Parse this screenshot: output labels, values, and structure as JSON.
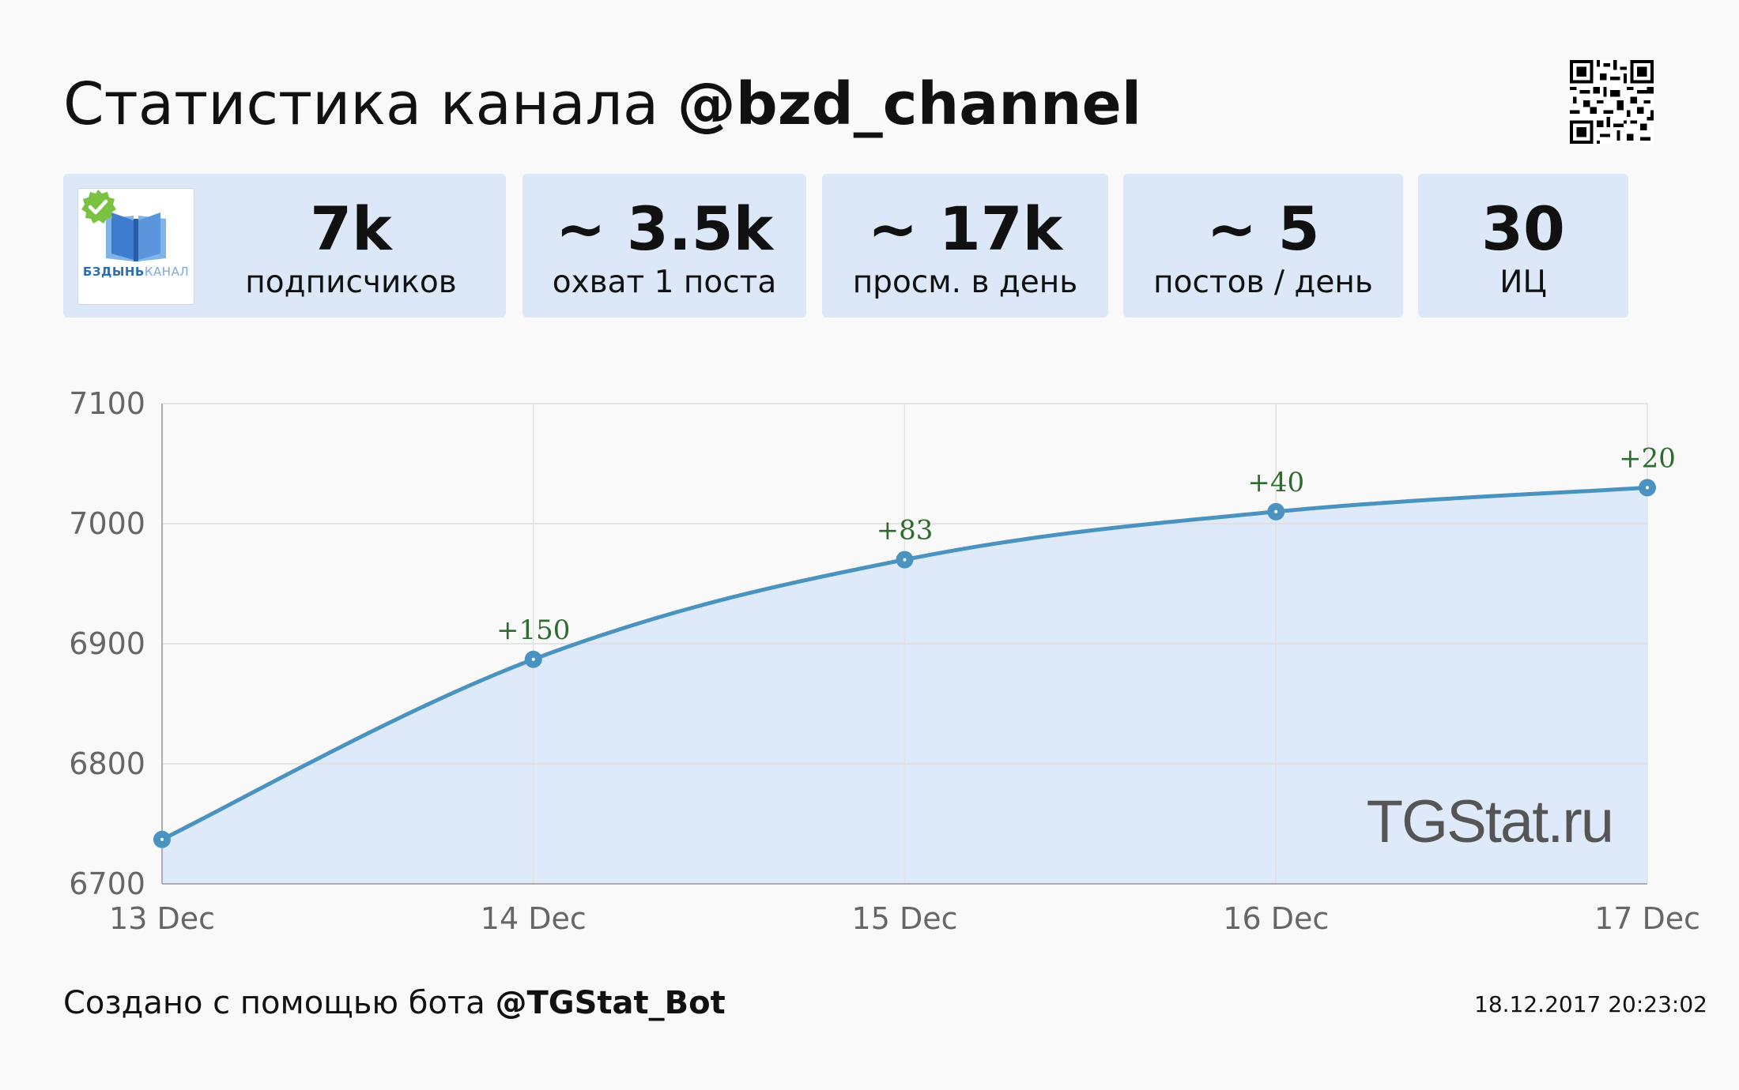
{
  "header": {
    "title_prefix": "Статистика канала ",
    "title_channel": "@bzd_channel"
  },
  "avatar": {
    "name_part1": "БЗДЫНЬ",
    "name_part2": "КАНАЛ",
    "verified_color": "#7cc242"
  },
  "stats": [
    {
      "value": "7k",
      "label": "подписчиков"
    },
    {
      "value": "~ 3.5k",
      "label": "охват 1 поста"
    },
    {
      "value": "~ 17k",
      "label": "просм. в день"
    },
    {
      "value": "~ 5",
      "label": "постов / день"
    },
    {
      "value": "30",
      "label": "ИЦ"
    }
  ],
  "chart_data": {
    "type": "line",
    "categories": [
      "13 Dec",
      "14 Dec",
      "15 Dec",
      "16 Dec",
      "17 Dec"
    ],
    "series": [
      {
        "values": [
          6737,
          6887,
          6970,
          7010,
          7030
        ]
      }
    ],
    "annotations": [
      "",
      "+150",
      "+83",
      "+40",
      "+20"
    ],
    "y_ticks": [
      "7100",
      "7000",
      "6900",
      "6800",
      "6700"
    ],
    "ylim": [
      6700,
      7100
    ],
    "grid": true,
    "watermark": "TGStat.ru",
    "line_color": "#4a93c0",
    "fill_color": "#deeaf9",
    "annotation_color": "#2e6b2e"
  },
  "footer": {
    "created_prefix": "Создано с помощью бота ",
    "bot": "@TGStat_Bot",
    "timestamp": "18.12.2017 20:23:02"
  }
}
